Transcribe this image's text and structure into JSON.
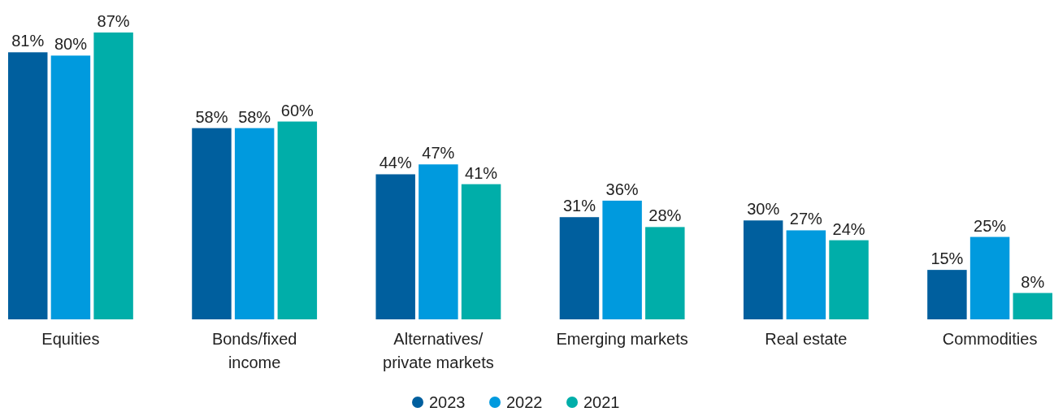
{
  "chart_data": {
    "type": "bar",
    "categories": [
      "Equities",
      "Bonds/fixed income",
      "Alternatives/ private markets",
      "Emerging markets",
      "Real estate",
      "Commodities"
    ],
    "series": [
      {
        "name": "2023",
        "color": "#005f9e",
        "values": [
          81,
          58,
          44,
          31,
          30,
          15
        ],
        "value_labels": [
          "81%",
          "58%",
          "44%",
          "31%",
          "30%",
          "15%"
        ]
      },
      {
        "name": "2022",
        "color": "#009ade",
        "values": [
          80,
          58,
          47,
          36,
          27,
          25
        ],
        "value_labels": [
          "80%",
          "58%",
          "47%",
          "36%",
          "27%",
          "25%"
        ]
      },
      {
        "name": "2021",
        "color": "#00aea9",
        "values": [
          87,
          60,
          41,
          28,
          24,
          8
        ],
        "value_labels": [
          "87%",
          "60%",
          "41%",
          "28%",
          "24%",
          "8%"
        ]
      }
    ],
    "legend": "bottom"
  }
}
